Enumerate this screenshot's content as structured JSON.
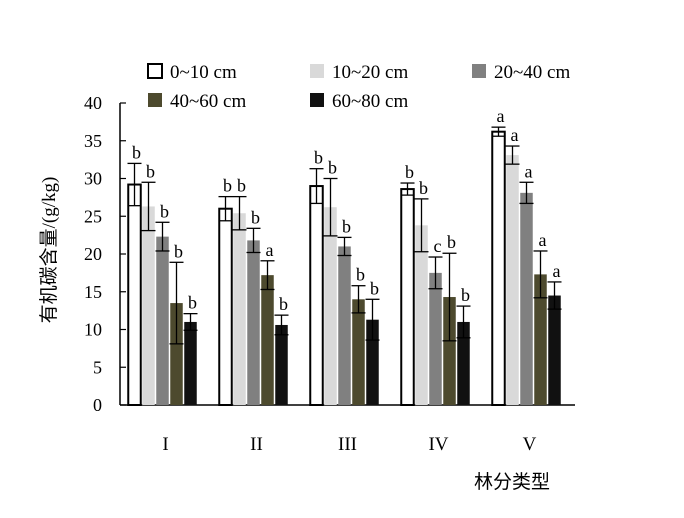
{
  "chart_data": {
    "type": "bar",
    "title": "",
    "xlabel": "林分类型",
    "ylabel": "有机碳含量/(g/kg)",
    "ylim": [
      0,
      40
    ],
    "yticks": [
      0,
      5,
      10,
      15,
      20,
      25,
      30,
      35,
      40
    ],
    "grid": false,
    "legend_position": "top",
    "categories": [
      "I",
      "II",
      "III",
      "IV",
      "V"
    ],
    "series": [
      {
        "name": "0~10 cm",
        "color": "#ffffff",
        "values": [
          29.2,
          26.0,
          29.0,
          28.6,
          36.2
        ],
        "errors": [
          2.8,
          1.6,
          2.3,
          0.8,
          0.6
        ],
        "labels": [
          "b",
          "b",
          "b",
          "b",
          "a"
        ]
      },
      {
        "name": "10~20 cm",
        "color": "#d9d9d9",
        "values": [
          26.3,
          25.4,
          26.2,
          23.8,
          33.1
        ],
        "errors": [
          3.2,
          2.2,
          3.8,
          3.5,
          1.2
        ],
        "labels": [
          "b",
          "b",
          "b",
          "b",
          "a"
        ]
      },
      {
        "name": "20~40 cm",
        "color": "#808080",
        "values": [
          22.3,
          21.8,
          21.0,
          17.5,
          28.1
        ],
        "errors": [
          1.9,
          1.6,
          1.2,
          2.1,
          1.4
        ],
        "labels": [
          "b",
          "b",
          "b",
          "c",
          "a"
        ]
      },
      {
        "name": "40~60 cm",
        "color": "#4d4a2e",
        "values": [
          13.5,
          17.2,
          14.0,
          14.3,
          17.3
        ],
        "errors": [
          5.4,
          1.9,
          1.8,
          5.8,
          3.1
        ],
        "labels": [
          "b",
          "a",
          "b",
          "b",
          "a"
        ]
      },
      {
        "name": "60~80 cm",
        "color": "#111111",
        "values": [
          11.0,
          10.6,
          11.3,
          11.0,
          14.5
        ],
        "errors": [
          1.1,
          1.3,
          2.7,
          2.1,
          1.8
        ],
        "labels": [
          "b",
          "b",
          "b",
          "b",
          "a"
        ]
      }
    ]
  }
}
